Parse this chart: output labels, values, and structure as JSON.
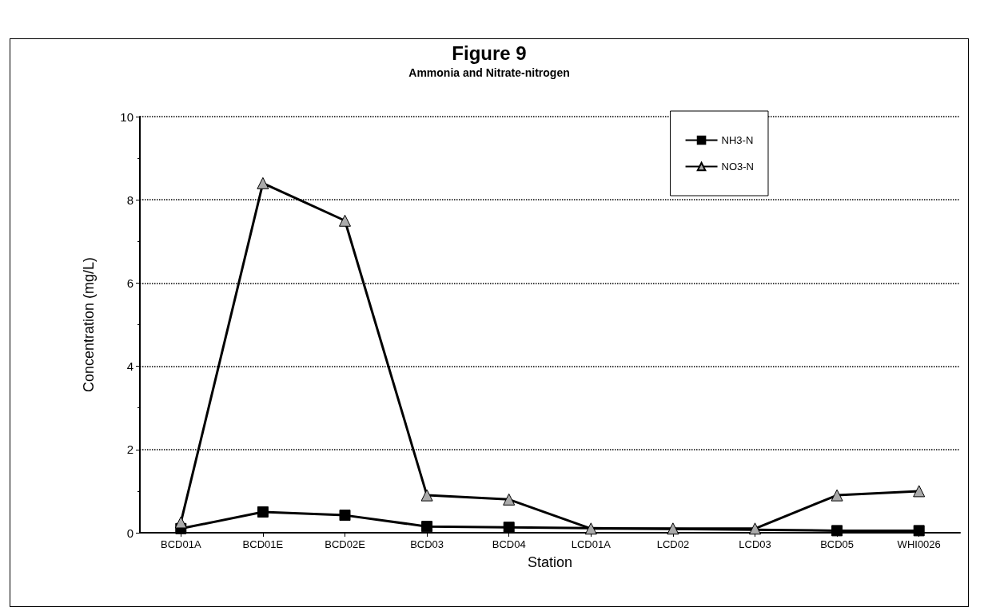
{
  "chart_data": {
    "type": "line",
    "title": "Figure 9",
    "subtitle": "Ammonia and Nitrate-nitrogen",
    "xlabel": "Station",
    "ylabel": "Concentration (mg/L)",
    "categories": [
      "BCD01A",
      "BCD01E",
      "BCD02E",
      "BCD03",
      "BCD04",
      "LCD01A",
      "LCD02",
      "LCD03",
      "BCD05",
      "WHI0026"
    ],
    "series": [
      {
        "name": "NH3-N",
        "color": "#000000",
        "marker": "square",
        "values": [
          0.1,
          0.5,
          0.42,
          0.15,
          0.13,
          null,
          null,
          null,
          0.05,
          0.05
        ]
      },
      {
        "name": "NO3-N",
        "color": "#000000",
        "marker": "triangle",
        "values": [
          0.25,
          8.4,
          7.5,
          0.9,
          0.8,
          0.1,
          0.1,
          0.1,
          0.9,
          1.0
        ]
      }
    ],
    "ylim": [
      0,
      10
    ],
    "yticks": [
      0,
      2,
      4,
      6,
      8,
      10
    ],
    "grid": "y",
    "legend": "top right",
    "line_style": "solid"
  }
}
